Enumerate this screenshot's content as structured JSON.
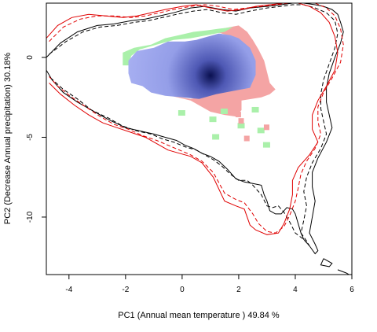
{
  "chart_data": {
    "type": "scatter",
    "title": "",
    "xlabel": "PC1 (Annual mean temperature ) 49.84 %",
    "ylabel": "PC2 (Decrease Annual precipitation) 30.18%",
    "xlim": [
      -4.8,
      6.0
    ],
    "ylim": [
      -13.6,
      3.4
    ],
    "x_ticks": [
      -4,
      -2,
      0,
      2,
      4,
      6
    ],
    "y_ticks": [
      0,
      -5,
      -10
    ],
    "grid": false,
    "legend": "none",
    "colors": {
      "niche_density_dark": "#0a1050",
      "niche_density_light": "#a8b0f2",
      "unfilling": "#f4a4a4",
      "expansion": "#aaf0aa",
      "native_envelope": "#000000",
      "invaded_envelope": "#e00000"
    },
    "density_peak": {
      "x": 1.0,
      "y": -1.1
    },
    "density_region": [
      [
        -1.9,
        -0.2
      ],
      [
        -1.6,
        0.4
      ],
      [
        -1.0,
        0.6
      ],
      [
        -0.5,
        1.0
      ],
      [
        0.1,
        1.0
      ],
      [
        0.5,
        1.1
      ],
      [
        0.9,
        1.3
      ],
      [
        1.3,
        1.5
      ],
      [
        1.7,
        1.4
      ],
      [
        2.0,
        1.2
      ],
      [
        2.4,
        0.6
      ],
      [
        2.6,
        -0.2
      ],
      [
        2.6,
        -1.1
      ],
      [
        2.4,
        -1.9
      ],
      [
        1.8,
        -2.1
      ],
      [
        1.2,
        -2.3
      ],
      [
        0.6,
        -2.6
      ],
      [
        0.0,
        -2.5
      ],
      [
        -0.6,
        -2.4
      ],
      [
        -1.1,
        -2.2
      ],
      [
        -1.4,
        -1.8
      ],
      [
        -1.8,
        -1.6
      ],
      [
        -1.9,
        -1.0
      ]
    ],
    "unfilling_region": [
      [
        -0.4,
        -2.4
      ],
      [
        0.3,
        -2.7
      ],
      [
        0.6,
        -3.0
      ],
      [
        1.0,
        -3.4
      ],
      [
        1.5,
        -3.6
      ],
      [
        1.9,
        -3.7
      ],
      [
        2.1,
        -3.3
      ],
      [
        2.1,
        -2.7
      ],
      [
        2.8,
        -2.5
      ],
      [
        3.1,
        -2.3
      ],
      [
        3.3,
        -2.0
      ],
      [
        3.1,
        -1.6
      ],
      [
        3.0,
        -0.9
      ],
      [
        2.9,
        -0.2
      ],
      [
        2.7,
        0.5
      ],
      [
        2.5,
        1.1
      ],
      [
        2.3,
        1.6
      ],
      [
        2.0,
        2.0
      ],
      [
        1.4,
        1.8
      ],
      [
        1.0,
        1.7
      ],
      [
        1.4,
        1.5
      ],
      [
        1.8,
        1.3
      ],
      [
        2.2,
        0.8
      ],
      [
        2.4,
        0.1
      ],
      [
        2.5,
        -0.7
      ],
      [
        2.3,
        -1.6
      ],
      [
        1.7,
        -2.1
      ],
      [
        0.9,
        -2.4
      ],
      [
        0.3,
        -2.6
      ]
    ],
    "expansion_region": [
      [
        -2.1,
        -0.5
      ],
      [
        -2.1,
        0.3
      ],
      [
        -1.7,
        0.6
      ],
      [
        -1.1,
        0.8
      ],
      [
        -0.6,
        1.2
      ],
      [
        -0.1,
        1.4
      ],
      [
        0.4,
        1.6
      ],
      [
        0.9,
        1.7
      ],
      [
        1.3,
        1.8
      ],
      [
        1.8,
        1.9
      ],
      [
        1.5,
        1.6
      ],
      [
        0.9,
        1.4
      ],
      [
        0.3,
        1.2
      ],
      [
        -0.3,
        1.1
      ],
      [
        -0.9,
        0.8
      ],
      [
        -1.5,
        0.5
      ],
      [
        -1.8,
        0.1
      ],
      [
        -1.9,
        -0.5
      ]
    ],
    "expansion_spots": [
      [
        0.0,
        -3.5
      ],
      [
        1.1,
        -3.9
      ],
      [
        1.5,
        -3.4
      ],
      [
        2.6,
        -3.3
      ],
      [
        2.1,
        -4.3
      ],
      [
        1.2,
        -5.0
      ],
      [
        2.8,
        -4.6
      ],
      [
        3.0,
        -5.5
      ]
    ],
    "unfilling_spots": [
      [
        2.1,
        -4.0
      ],
      [
        2.0,
        -3.6
      ],
      [
        2.3,
        -5.1
      ],
      [
        3.0,
        -4.4
      ]
    ],
    "series": [
      {
        "type": "line",
        "style": "solid",
        "color": "#000000",
        "x": [
          -4.8,
          -4.3,
          -3.7,
          -3.0,
          -2.4,
          -1.8,
          -1.3,
          -0.8,
          -0.3,
          0.3,
          0.8,
          1.4,
          1.9,
          2.4,
          3.0,
          3.5,
          3.9,
          4.3,
          4.7,
          5.0,
          5.3,
          5.5,
          5.6,
          5.7,
          5.6,
          5.4,
          5.2,
          5.1,
          5.1,
          5.2,
          5.3,
          5.1,
          4.8,
          4.6,
          4.6,
          4.7,
          4.6,
          4.5,
          4.7,
          4.8,
          4.7,
          4.5,
          4.3,
          4.2,
          4.1,
          4.0,
          3.9,
          3.7,
          3.5,
          3.3,
          3.1,
          3.0,
          2.9,
          2.8,
          2.5,
          2.2,
          1.9,
          1.6,
          1.3,
          1.0,
          0.7,
          0.4,
          0.1,
          -0.2,
          -0.6,
          -1.0,
          -1.5,
          -2.0,
          -2.6,
          -3.1,
          -3.7,
          -4.2,
          -4.6,
          -4.8
        ],
        "y": [
          0.0,
          0.9,
          1.6,
          2.0,
          2.1,
          2.3,
          2.4,
          2.6,
          2.8,
          3.1,
          3.2,
          3.0,
          2.9,
          3.1,
          3.2,
          3.3,
          3.4,
          3.4,
          3.3,
          3.2,
          3.0,
          2.7,
          2.2,
          1.6,
          0.9,
          0.0,
          -1.0,
          -1.9,
          -2.8,
          -3.6,
          -4.4,
          -5.3,
          -6.3,
          -7.2,
          -8.1,
          -9.0,
          -10.0,
          -11.0,
          -11.7,
          -12.1,
          -12.3,
          -11.8,
          -11.4,
          -11.0,
          -10.4,
          -9.8,
          -9.5,
          -9.4,
          -9.8,
          -9.8,
          -9.6,
          -9.0,
          -8.6,
          -8.0,
          -7.9,
          -7.8,
          -7.6,
          -7.0,
          -6.5,
          -6.2,
          -6.0,
          -5.7,
          -5.5,
          -5.2,
          -5.0,
          -4.8,
          -4.6,
          -4.4,
          -3.9,
          -3.4,
          -2.8,
          -2.2,
          -1.4,
          -0.8
        ]
      },
      {
        "type": "line",
        "style": "dashed",
        "color": "#000000",
        "x": [
          -4.7,
          -4.1,
          -3.5,
          -2.9,
          -2.3,
          -1.7,
          -1.2,
          -0.7,
          -0.2,
          0.4,
          0.9,
          1.4,
          1.9,
          2.4,
          3.0,
          3.5,
          3.9,
          4.3,
          4.7,
          5.1,
          5.4,
          5.5,
          5.4,
          5.2,
          5.0,
          4.9,
          4.9,
          5.0,
          5.1,
          4.9,
          4.6,
          4.4,
          4.3,
          4.4,
          4.3,
          4.2,
          4.4,
          4.5,
          4.3,
          4.0,
          3.8,
          3.6,
          3.4,
          3.2,
          3.0,
          2.8,
          2.5,
          2.3,
          2.0,
          1.7,
          1.4,
          1.1,
          0.8,
          0.5,
          0.1,
          -0.3,
          -0.7,
          -1.1,
          -1.6,
          -2.1,
          -2.6,
          -3.2,
          -3.7,
          -4.2,
          -4.7
        ],
        "y": [
          0.2,
          1.0,
          1.6,
          1.9,
          2.0,
          2.2,
          2.3,
          2.5,
          2.7,
          2.9,
          3.0,
          2.8,
          2.7,
          2.9,
          3.1,
          3.2,
          3.3,
          3.3,
          3.1,
          2.8,
          2.3,
          1.5,
          0.6,
          -0.4,
          -1.4,
          -2.3,
          -3.2,
          -4.0,
          -4.8,
          -5.7,
          -6.6,
          -7.5,
          -8.4,
          -9.3,
          -10.2,
          -11.0,
          -11.5,
          -11.8,
          -11.4,
          -11.0,
          -10.3,
          -9.7,
          -9.3,
          -9.4,
          -9.3,
          -8.6,
          -8.0,
          -7.7,
          -7.7,
          -7.3,
          -6.8,
          -6.4,
          -6.1,
          -5.8,
          -5.6,
          -5.3,
          -5.1,
          -4.8,
          -4.6,
          -4.3,
          -3.8,
          -3.3,
          -2.6,
          -2.0,
          -1.2
        ]
      },
      {
        "type": "line",
        "style": "solid",
        "color": "#e00000",
        "x": [
          -4.8,
          -4.4,
          -3.9,
          -3.3,
          -2.7,
          -2.1,
          -1.6,
          -1.1,
          -0.6,
          0.0,
          0.5,
          1.0,
          1.6,
          2.1,
          2.6,
          3.1,
          3.6,
          4.1,
          4.5,
          4.9,
          5.2,
          5.4,
          5.5,
          5.4,
          5.1,
          4.8,
          4.6,
          4.6,
          4.8,
          4.5,
          4.1,
          3.9,
          3.9,
          3.8,
          3.6,
          3.4,
          3.0,
          2.6,
          2.4,
          2.2,
          1.9,
          1.5,
          1.1,
          0.7,
          0.3,
          -0.1,
          -0.5,
          -0.9,
          -1.3,
          -1.8,
          -2.3,
          -2.8,
          -3.3,
          -3.8,
          -4.3,
          -4.7
        ],
        "y": [
          1.2,
          2.0,
          2.5,
          2.7,
          2.6,
          2.5,
          2.6,
          2.8,
          3.0,
          3.2,
          3.3,
          3.1,
          2.9,
          3.0,
          3.2,
          3.3,
          3.4,
          3.4,
          3.2,
          2.8,
          2.2,
          1.3,
          0.3,
          -0.8,
          -1.8,
          -2.7,
          -3.6,
          -4.5,
          -5.3,
          -6.1,
          -6.9,
          -7.7,
          -8.6,
          -9.5,
          -10.4,
          -11.0,
          -11.1,
          -10.8,
          -10.5,
          -9.5,
          -9.3,
          -9.0,
          -7.5,
          -6.6,
          -6.2,
          -6.0,
          -5.8,
          -5.4,
          -5.0,
          -4.7,
          -4.4,
          -4.1,
          -3.6,
          -3.0,
          -2.3,
          -1.6
        ]
      },
      {
        "type": "line",
        "style": "dashed",
        "color": "#e00000",
        "x": [
          -4.7,
          -4.2,
          -3.6,
          -3.0,
          -2.4,
          -1.8,
          -1.3,
          -0.8,
          -0.3,
          0.3,
          0.8,
          1.3,
          1.8,
          2.3,
          2.8,
          3.3,
          3.8,
          4.3,
          4.7,
          5.1,
          5.4,
          5.6,
          5.7,
          5.6,
          5.3,
          5.0,
          4.8,
          4.8,
          4.9,
          4.7,
          4.4,
          4.2,
          4.1,
          4.0,
          3.8,
          3.6,
          3.3,
          3.0,
          2.7,
          2.5,
          2.2,
          1.9,
          1.5,
          1.1,
          0.7,
          0.3,
          -0.1,
          -0.5,
          -0.9,
          -1.4,
          -1.9,
          -2.4,
          -2.9,
          -3.4,
          -3.9,
          -4.4,
          -4.7
        ],
        "y": [
          1.0,
          1.9,
          2.4,
          2.6,
          2.6,
          2.5,
          2.6,
          2.8,
          3.0,
          3.2,
          3.3,
          3.2,
          3.0,
          3.1,
          3.2,
          3.3,
          3.4,
          3.5,
          3.4,
          3.1,
          2.6,
          1.8,
          0.8,
          -0.3,
          -1.3,
          -2.2,
          -3.1,
          -4.0,
          -4.8,
          -5.7,
          -6.5,
          -7.3,
          -8.2,
          -9.0,
          -9.9,
          -10.6,
          -11.0,
          -10.9,
          -10.4,
          -9.8,
          -9.1,
          -8.9,
          -8.5,
          -7.2,
          -6.5,
          -6.1,
          -5.8,
          -5.5,
          -5.2,
          -4.9,
          -4.5,
          -4.2,
          -3.7,
          -3.1,
          -2.5,
          -1.8,
          -1.2
        ]
      },
      {
        "type": "line",
        "style": "solid",
        "color": "#000000",
        "x": [
          5.0,
          5.3,
          5.2,
          4.9,
          5.0
        ],
        "y": [
          -12.6,
          -12.9,
          -13.1,
          -13.0,
          -12.6
        ]
      },
      {
        "type": "line",
        "style": "solid",
        "color": "#000000",
        "x": [
          5.5,
          5.8,
          6.0
        ],
        "y": [
          -13.3,
          -13.5,
          -13.7
        ]
      }
    ]
  }
}
